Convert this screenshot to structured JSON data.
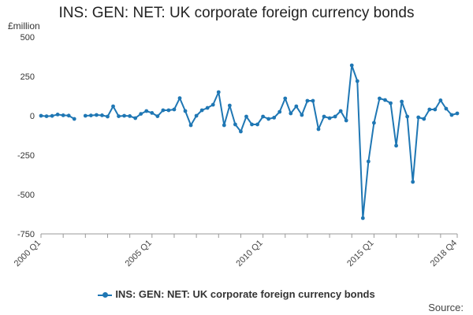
{
  "chart_data": {
    "type": "line",
    "title": "INS: GEN: NET: UK corporate foreign currency bonds",
    "ylabel": "£million",
    "ylim": [
      -750,
      500
    ],
    "yticks": [
      500,
      250,
      0,
      -250,
      -500,
      -750
    ],
    "xtick_labels": [
      "2000 Q1",
      "2005 Q1",
      "2010 Q1",
      "2015 Q1",
      "2018 Q4"
    ],
    "legend": "bottom",
    "grid": false,
    "color": "#1f77b4",
    "x_start": "2000 Q1",
    "x_end": "2018 Q4",
    "series": [
      {
        "name": "INS: GEN: NET: UK corporate foreign currency bonds",
        "values": [
          0,
          -3,
          -1,
          8,
          3,
          1,
          -20,
          null,
          0,
          2,
          5,
          3,
          -5,
          60,
          -3,
          0,
          -2,
          -15,
          12,
          30,
          18,
          -3,
          35,
          35,
          40,
          112,
          30,
          -60,
          0,
          35,
          50,
          70,
          150,
          -60,
          65,
          -55,
          -100,
          -5,
          -55,
          -55,
          -5,
          -20,
          -12,
          25,
          110,
          15,
          60,
          5,
          95,
          95,
          -85,
          -5,
          -15,
          -5,
          30,
          -30,
          320,
          220,
          -650,
          -290,
          -45,
          110,
          100,
          80,
          -190,
          90,
          -5,
          -420,
          -10,
          -20,
          40,
          40,
          98,
          45,
          5,
          15
        ]
      }
    ]
  },
  "legend_label": "INS: GEN: NET: UK corporate foreign currency bonds",
  "source_label": "Source:"
}
